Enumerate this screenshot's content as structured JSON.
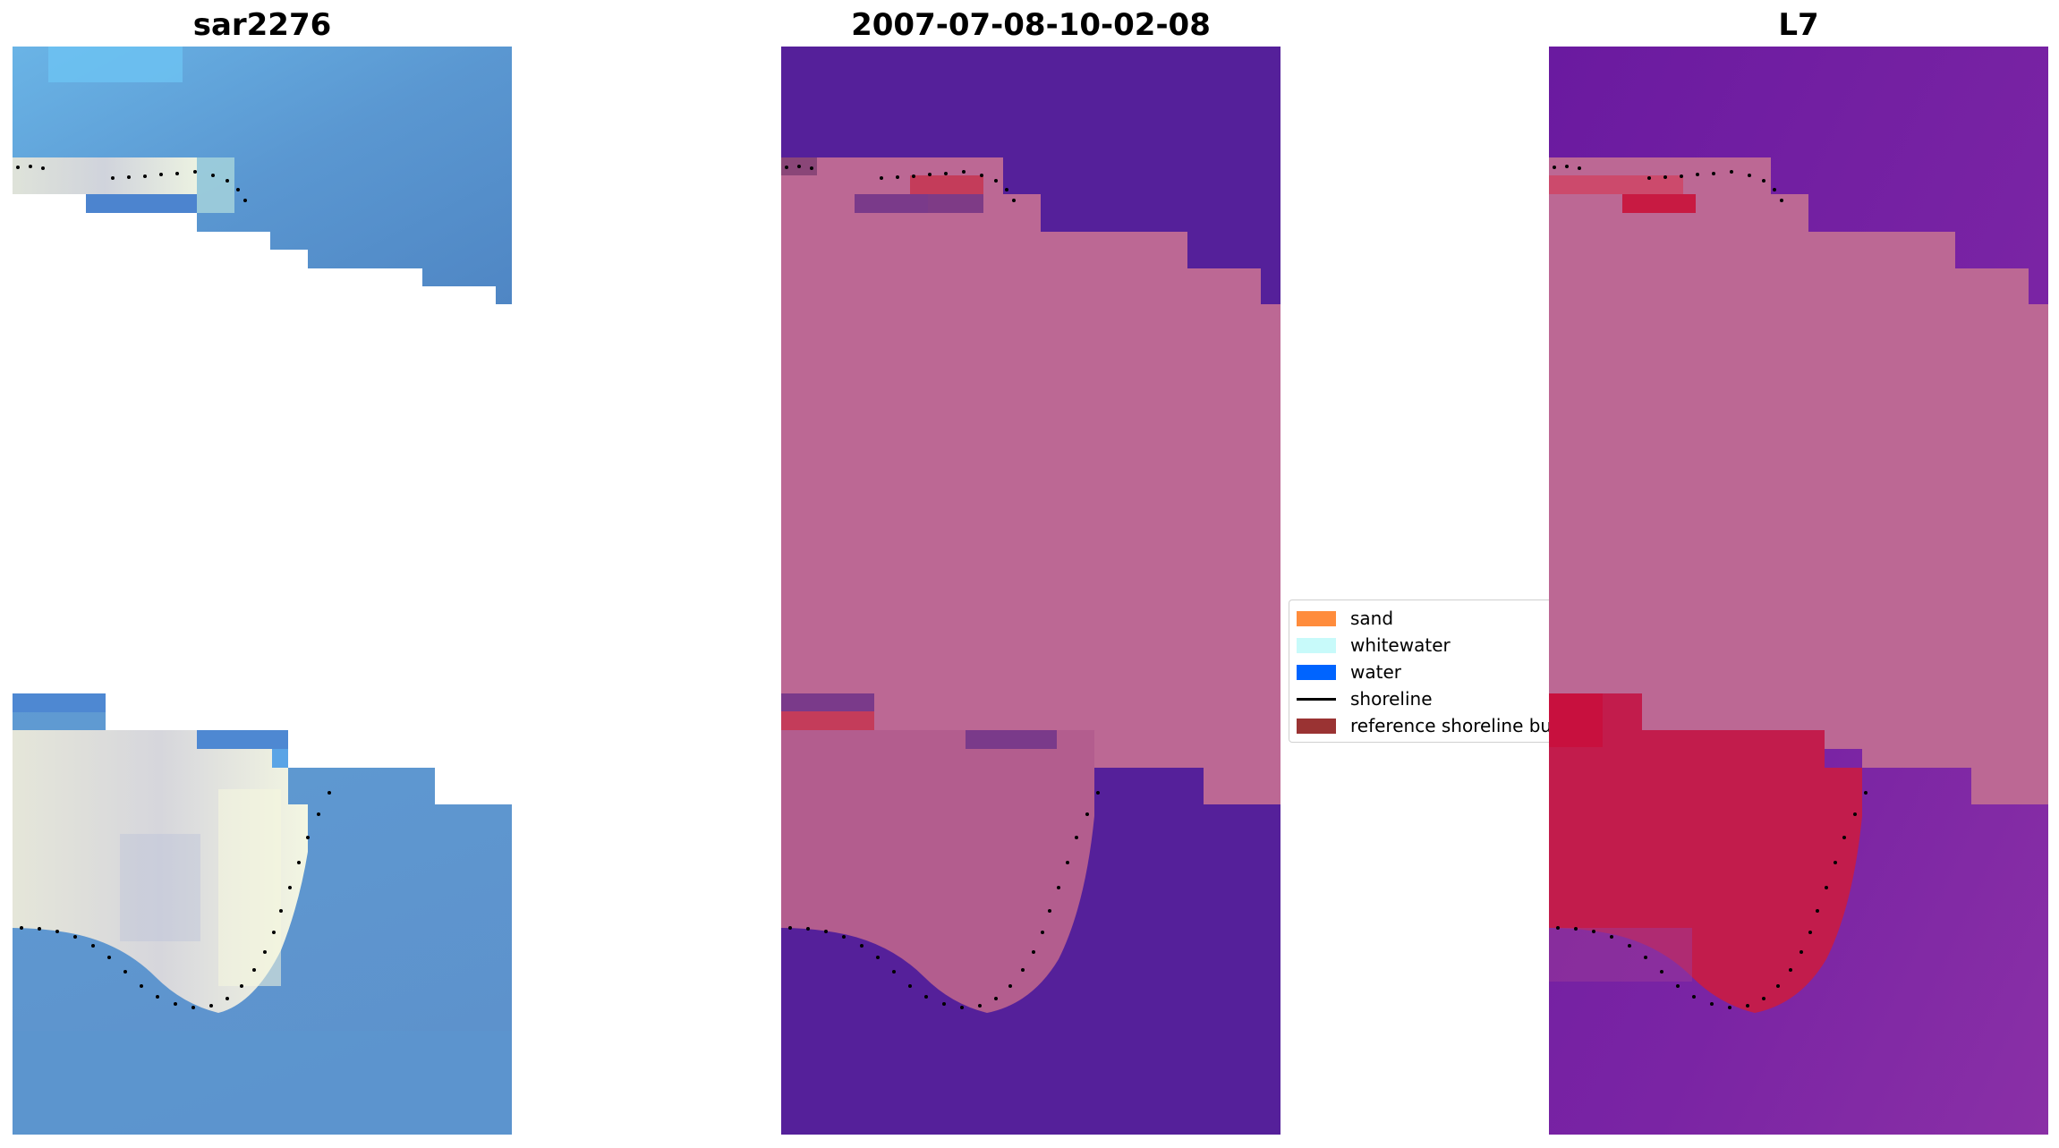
{
  "panels": [
    {
      "title": "sar2276"
    },
    {
      "title": "2007-07-08-10-02-08"
    },
    {
      "title": "L7"
    }
  ],
  "legend": {
    "items": [
      {
        "label": "sand",
        "color": "#ff8c3c",
        "kind": "patch"
      },
      {
        "label": "whitewater",
        "color": "#c8fafa",
        "kind": "patch"
      },
      {
        "label": "water",
        "color": "#0064ff",
        "kind": "patch"
      },
      {
        "label": "shoreline",
        "color": "#000000",
        "kind": "line"
      },
      {
        "label": "reference shoreline buffer",
        "color": "#9a3333",
        "kind": "patch"
      }
    ]
  },
  "colors": {
    "rgb_water": "#5b95cf",
    "rgb_sand": "#e6e4dc",
    "class_water": "#55209a",
    "class_land": "#bc6894",
    "mndwi_land": "#c21c4c",
    "mndwi_water": "#7a1ea0"
  }
}
